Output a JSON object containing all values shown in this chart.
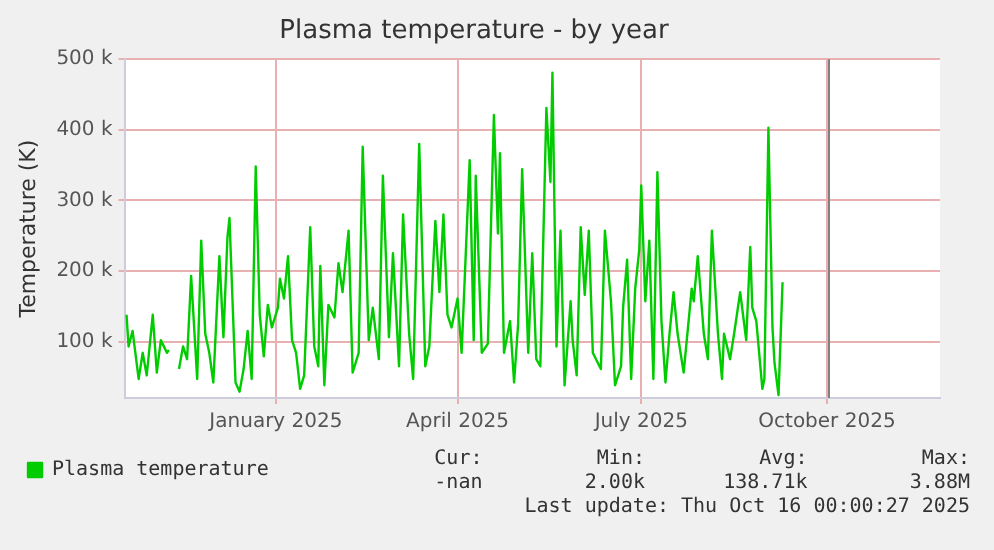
{
  "chart_data": {
    "type": "line",
    "title": "Plasma temperature - by year",
    "ylabel": "Temperature (K)",
    "x": [
      "2024-11-02",
      "2024-11-03",
      "2024-11-05",
      "2024-11-08",
      "2024-11-10",
      "2024-11-12",
      "2024-11-15",
      "2024-11-17",
      "2024-11-19",
      "2024-11-22",
      "2024-11-23",
      "2024-11-25",
      "2024-11-28",
      "2024-11-30",
      "2024-12-02",
      "2024-12-04",
      "2024-12-07",
      "2024-12-09",
      "2024-12-11",
      "2024-12-13",
      "2024-12-15",
      "2024-12-18",
      "2024-12-20",
      "2024-12-22",
      "2024-12-23",
      "2024-12-26",
      "2024-12-28",
      "2024-12-30",
      "2025-01-01",
      "2025-01-03",
      "2025-01-05",
      "2025-01-07",
      "2025-01-09",
      "2025-01-11",
      "2025-01-13",
      "2025-01-16",
      "2025-01-17",
      "2025-01-19",
      "2025-01-21",
      "2025-01-23",
      "2025-01-25",
      "2025-01-27",
      "2025-01-29",
      "2025-02-01",
      "2025-02-03",
      "2025-02-05",
      "2025-02-06",
      "2025-02-08",
      "2025-02-10",
      "2025-02-13",
      "2025-02-15",
      "2025-02-17",
      "2025-02-20",
      "2025-02-22",
      "2025-02-25",
      "2025-02-27",
      "2025-03-02",
      "2025-03-04",
      "2025-03-07",
      "2025-03-09",
      "2025-03-12",
      "2025-03-14",
      "2025-03-17",
      "2025-03-19",
      "2025-03-22",
      "2025-03-24",
      "2025-03-27",
      "2025-03-30",
      "2025-04-01",
      "2025-04-04",
      "2025-04-06",
      "2025-04-08",
      "2025-04-10",
      "2025-04-12",
      "2025-04-15",
      "2025-04-17",
      "2025-04-21",
      "2025-04-23",
      "2025-04-24",
      "2025-04-27",
      "2025-04-30",
      "2025-05-03",
      "2025-05-05",
      "2025-05-06",
      "2025-05-08",
      "2025-05-11",
      "2025-05-13",
      "2025-05-15",
      "2025-05-17",
      "2025-05-20",
      "2025-05-22",
      "2025-05-24",
      "2025-05-26",
      "2025-05-29",
      "2025-05-31",
      "2025-06-01",
      "2025-06-03",
      "2025-06-05",
      "2025-06-07",
      "2025-06-10",
      "2025-06-11",
      "2025-06-13",
      "2025-06-15",
      "2025-06-17",
      "2025-06-19",
      "2025-06-21",
      "2025-06-25",
      "2025-06-27",
      "2025-06-30",
      "2025-07-02",
      "2025-07-05",
      "2025-07-06",
      "2025-07-08",
      "2025-07-10",
      "2025-07-12",
      "2025-07-14",
      "2025-07-15",
      "2025-07-17",
      "2025-07-19",
      "2025-07-21",
      "2025-07-23",
      "2025-07-25",
      "2025-07-27",
      "2025-07-29",
      "2025-07-31",
      "2025-08-02",
      "2025-08-05",
      "2025-08-09",
      "2025-08-10",
      "2025-08-12",
      "2025-08-15",
      "2025-08-17",
      "2025-08-19",
      "2025-08-22",
      "2025-08-24",
      "2025-08-25",
      "2025-08-28",
      "2025-08-30",
      "2025-09-02",
      "2025-09-05",
      "2025-09-07",
      "2025-09-08",
      "2025-09-10",
      "2025-09-13",
      "2025-09-14",
      "2025-09-16",
      "2025-09-18",
      "2025-09-19",
      "2025-09-21",
      "2025-09-23"
    ],
    "series": [
      {
        "name": "Plasma temperature",
        "color": "#00cc00",
        "values": [
          138000,
          93000,
          115000,
          47000,
          84000,
          52000,
          138000,
          56000,
          102000,
          84000,
          88000,
          null,
          61000,
          93000,
          75000,
          193000,
          47000,
          243000,
          111000,
          84000,
          42000,
          221000,
          106000,
          248000,
          275000,
          42000,
          29000,
          61000,
          115000,
          47000,
          348000,
          138000,
          79000,
          152000,
          120000,
          148000,
          189000,
          161000,
          221000,
          102000,
          84000,
          33000,
          52000,
          262000,
          93000,
          65000,
          207000,
          38000,
          152000,
          134000,
          211000,
          170000,
          257000,
          56000,
          84000,
          376000,
          102000,
          148000,
          75000,
          335000,
          106000,
          225000,
          65000,
          280000,
          111000,
          47000,
          380000,
          65000,
          93000,
          271000,
          170000,
          280000,
          138000,
          120000,
          161000,
          84000,
          357000,
          102000,
          335000,
          84000,
          97000,
          421000,
          253000,
          367000,
          84000,
          129000,
          42000,
          125000,
          344000,
          84000,
          225000,
          75000,
          65000,
          431000,
          326000,
          481000,
          93000,
          257000,
          38000,
          157000,
          102000,
          52000,
          262000,
          166000,
          257000,
          84000,
          61000,
          257000,
          157000,
          38000,
          65000,
          148000,
          216000,
          47000,
          175000,
          230000,
          321000,
          157000,
          243000,
          47000,
          340000,
          129000,
          42000,
          111000,
          170000,
          111000,
          56000,
          175000,
          157000,
          221000,
          111000,
          75000,
          257000,
          111000,
          47000,
          111000,
          75000,
          111000,
          170000,
          102000,
          234000,
          148000,
          129000,
          33000,
          47000,
          403000,
          120000,
          70000,
          24000,
          184000
        ]
      }
    ],
    "xlim": [
      "2024-11-01",
      "2025-12-10"
    ],
    "xticks": [
      {
        "value": "2025-01-15",
        "label": "January 2025"
      },
      {
        "value": "2025-04-15",
        "label": "April 2025"
      },
      {
        "value": "2025-07-15",
        "label": "July 2025"
      },
      {
        "value": "2025-10-15",
        "label": "October 2025"
      }
    ],
    "ylim": [
      20000,
      500000
    ],
    "yticks": [
      {
        "value": 100000,
        "label": "100 k"
      },
      {
        "value": 200000,
        "label": "200 k"
      },
      {
        "value": 300000,
        "label": "300 k"
      },
      {
        "value": 400000,
        "label": "400 k"
      },
      {
        "value": 500000,
        "label": "500 k"
      }
    ],
    "ref_lines": [
      {
        "axis": "x",
        "value": "2025-10-16",
        "color": "#808080"
      }
    ],
    "grid": true,
    "legend": "bottom",
    "annotations": [
      "Cur:",
      "Min:",
      "Avg:",
      "Max:",
      "-nan",
      "2.00k",
      "138.71k",
      "3.88M",
      "Last update: Thu Oct 16 00:00:27 2025"
    ]
  }
}
